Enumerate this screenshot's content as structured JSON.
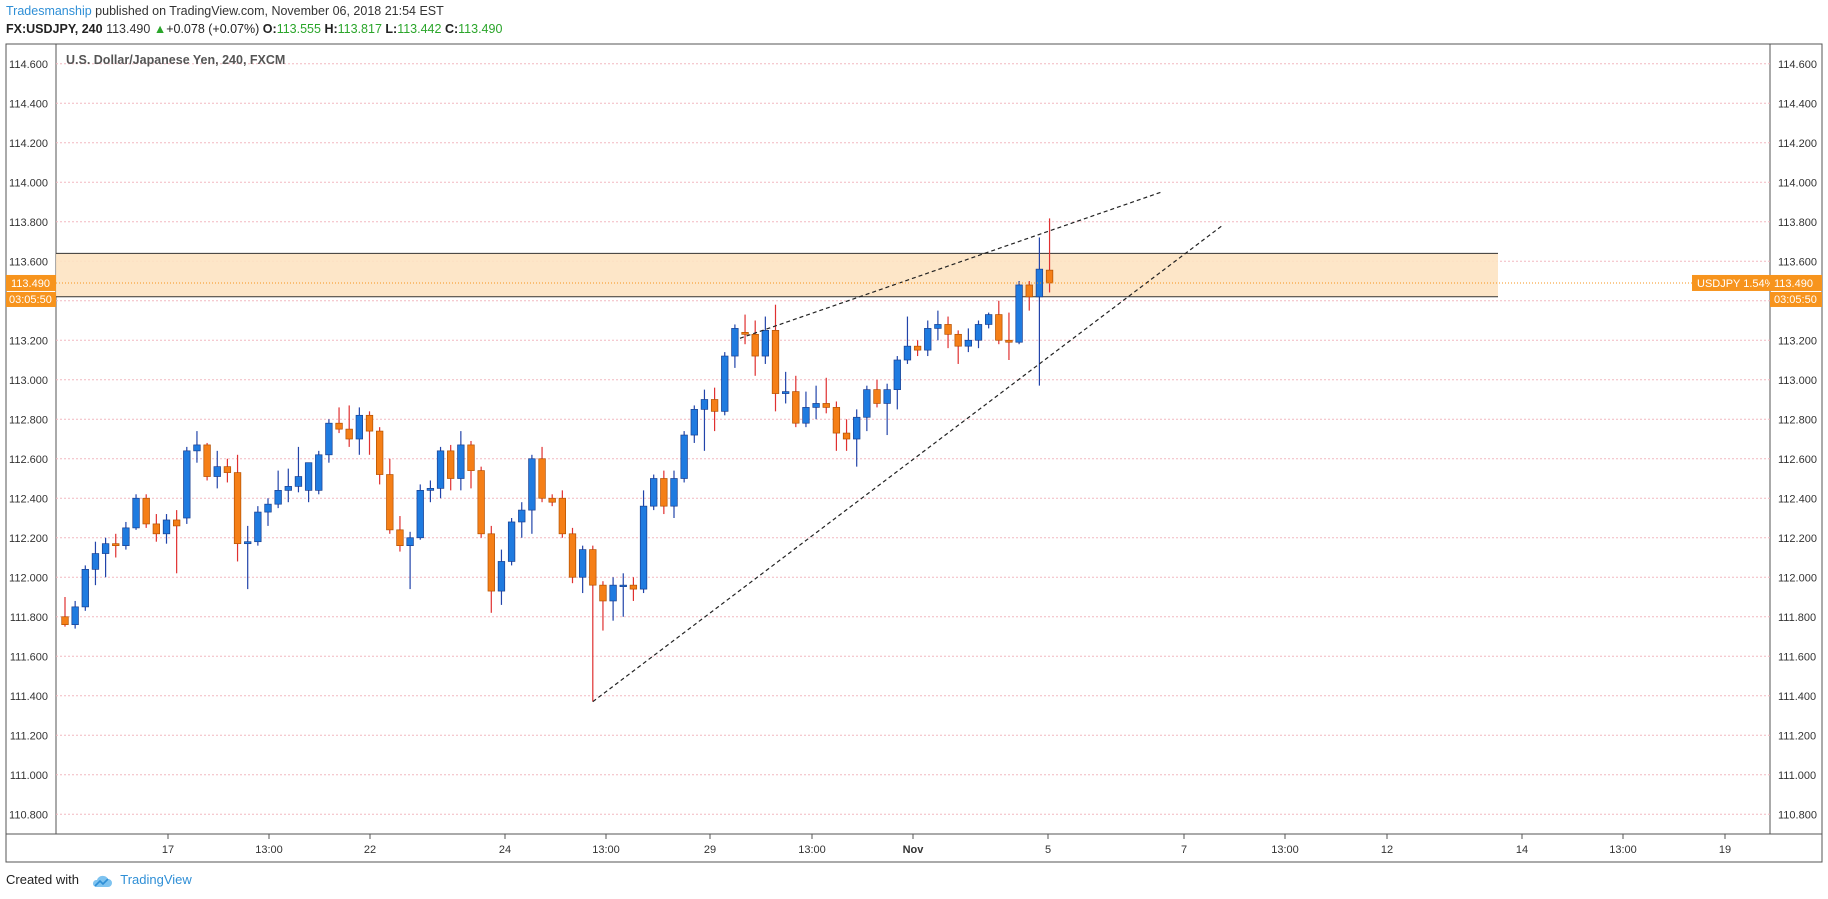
{
  "header": {
    "author": "Tradesmanship",
    "published_text": "published on TradingView.com, November 06, 2018 21:54 EST",
    "symbol": "FX:USDJPY, 240",
    "last_price": "113.490",
    "change": "+0.078 (+0.07%)",
    "open_label": "O:",
    "open": "113.555",
    "high_label": "H:",
    "high": "113.817",
    "low_label": "L:",
    "low": "113.442",
    "close_label": "C:",
    "close": "113.490"
  },
  "footer": {
    "created_with": "Created with",
    "brand": "TradingView"
  },
  "colors": {
    "up": "#1f7be0",
    "down": "#f57f17",
    "gridline": "#f2b8c0",
    "zone_fill": "#fde3c2",
    "price_tag": "#f7941d"
  },
  "chart_data": {
    "type": "candlestick",
    "title": "U.S. Dollar/Japanese Yen, 240, FXCM",
    "ylim": [
      110.7,
      114.7
    ],
    "y_ticks": [
      "114.600",
      "114.400",
      "114.200",
      "114.000",
      "113.800",
      "113.600",
      "113.400",
      "113.200",
      "113.000",
      "112.800",
      "112.600",
      "112.400",
      "112.200",
      "112.000",
      "111.800",
      "111.600",
      "111.400",
      "111.200",
      "111.000",
      "110.800"
    ],
    "x_ticks": [
      "17",
      "13:00",
      "22",
      "24",
      "13:00",
      "29",
      "13:00",
      "Nov",
      "5",
      "7",
      "13:00",
      "12",
      "14",
      "13:00",
      "19"
    ],
    "price_label_left": "113.490",
    "countdown": "03:05:50",
    "price_label_right": "113.490",
    "symbol_badge": "USDJPY 1.54%",
    "resistance_zone": {
      "top": 113.64,
      "bottom": 113.42
    },
    "candles": [
      {
        "o": 111.8,
        "h": 111.9,
        "l": 111.75,
        "c": 111.76
      },
      {
        "o": 111.76,
        "h": 111.88,
        "l": 111.74,
        "c": 111.85
      },
      {
        "o": 111.85,
        "h": 112.06,
        "l": 111.83,
        "c": 112.04
      },
      {
        "o": 112.04,
        "h": 112.18,
        "l": 111.96,
        "c": 112.12
      },
      {
        "o": 112.12,
        "h": 112.2,
        "l": 112.0,
        "c": 112.17
      },
      {
        "o": 112.17,
        "h": 112.22,
        "l": 112.1,
        "c": 112.16
      },
      {
        "o": 112.16,
        "h": 112.28,
        "l": 112.14,
        "c": 112.25
      },
      {
        "o": 112.25,
        "h": 112.42,
        "l": 112.24,
        "c": 112.4
      },
      {
        "o": 112.4,
        "h": 112.42,
        "l": 112.25,
        "c": 112.27
      },
      {
        "o": 112.27,
        "h": 112.32,
        "l": 112.18,
        "c": 112.22
      },
      {
        "o": 112.22,
        "h": 112.32,
        "l": 112.17,
        "c": 112.29
      },
      {
        "o": 112.29,
        "h": 112.34,
        "l": 112.02,
        "c": 112.26
      },
      {
        "o": 112.3,
        "h": 112.66,
        "l": 112.27,
        "c": 112.64
      },
      {
        "o": 112.64,
        "h": 112.74,
        "l": 112.58,
        "c": 112.67
      },
      {
        "o": 112.67,
        "h": 112.68,
        "l": 112.49,
        "c": 112.51
      },
      {
        "o": 112.51,
        "h": 112.64,
        "l": 112.45,
        "c": 112.56
      },
      {
        "o": 112.56,
        "h": 112.6,
        "l": 112.48,
        "c": 112.53
      },
      {
        "o": 112.53,
        "h": 112.62,
        "l": 112.08,
        "c": 112.17
      },
      {
        "o": 112.17,
        "h": 112.26,
        "l": 111.94,
        "c": 112.18
      },
      {
        "o": 112.18,
        "h": 112.36,
        "l": 112.16,
        "c": 112.33
      },
      {
        "o": 112.33,
        "h": 112.4,
        "l": 112.26,
        "c": 112.37
      },
      {
        "o": 112.37,
        "h": 112.54,
        "l": 112.35,
        "c": 112.44
      },
      {
        "o": 112.44,
        "h": 112.55,
        "l": 112.38,
        "c": 112.46
      },
      {
        "o": 112.46,
        "h": 112.66,
        "l": 112.43,
        "c": 112.51
      },
      {
        "o": 112.44,
        "h": 112.58,
        "l": 112.38,
        "c": 112.58
      },
      {
        "o": 112.44,
        "h": 112.64,
        "l": 112.42,
        "c": 112.62
      },
      {
        "o": 112.62,
        "h": 112.8,
        "l": 112.58,
        "c": 112.78
      },
      {
        "o": 112.78,
        "h": 112.86,
        "l": 112.73,
        "c": 112.75
      },
      {
        "o": 112.75,
        "h": 112.87,
        "l": 112.66,
        "c": 112.7
      },
      {
        "o": 112.7,
        "h": 112.86,
        "l": 112.62,
        "c": 112.82
      },
      {
        "o": 112.82,
        "h": 112.84,
        "l": 112.62,
        "c": 112.74
      },
      {
        "o": 112.74,
        "h": 112.76,
        "l": 112.47,
        "c": 112.52
      },
      {
        "o": 112.52,
        "h": 112.6,
        "l": 112.22,
        "c": 112.24
      },
      {
        "o": 112.24,
        "h": 112.31,
        "l": 112.13,
        "c": 112.16
      },
      {
        "o": 112.16,
        "h": 112.23,
        "l": 111.94,
        "c": 112.2
      },
      {
        "o": 112.2,
        "h": 112.47,
        "l": 112.19,
        "c": 112.44
      },
      {
        "o": 112.44,
        "h": 112.49,
        "l": 112.38,
        "c": 112.45
      },
      {
        "o": 112.45,
        "h": 112.66,
        "l": 112.4,
        "c": 112.64
      },
      {
        "o": 112.64,
        "h": 112.67,
        "l": 112.44,
        "c": 112.5
      },
      {
        "o": 112.5,
        "h": 112.74,
        "l": 112.44,
        "c": 112.67
      },
      {
        "o": 112.67,
        "h": 112.69,
        "l": 112.45,
        "c": 112.54
      },
      {
        "o": 112.54,
        "h": 112.56,
        "l": 112.2,
        "c": 112.22
      },
      {
        "o": 112.22,
        "h": 112.26,
        "l": 111.82,
        "c": 111.93
      },
      {
        "o": 111.93,
        "h": 112.14,
        "l": 111.86,
        "c": 112.08
      },
      {
        "o": 112.08,
        "h": 112.3,
        "l": 112.06,
        "c": 112.28
      },
      {
        "o": 112.28,
        "h": 112.38,
        "l": 112.2,
        "c": 112.34
      },
      {
        "o": 112.34,
        "h": 112.62,
        "l": 112.22,
        "c": 112.6
      },
      {
        "o": 112.6,
        "h": 112.66,
        "l": 112.38,
        "c": 112.4
      },
      {
        "o": 112.4,
        "h": 112.42,
        "l": 112.36,
        "c": 112.38
      },
      {
        "o": 112.4,
        "h": 112.44,
        "l": 112.2,
        "c": 112.22
      },
      {
        "o": 112.22,
        "h": 112.25,
        "l": 111.97,
        "c": 112.0
      },
      {
        "o": 112.0,
        "h": 112.16,
        "l": 111.92,
        "c": 112.14
      },
      {
        "o": 112.14,
        "h": 112.16,
        "l": 111.37,
        "c": 111.96
      },
      {
        "o": 111.96,
        "h": 111.98,
        "l": 111.73,
        "c": 111.88
      },
      {
        "o": 111.88,
        "h": 112.0,
        "l": 111.78,
        "c": 111.96
      },
      {
        "o": 111.96,
        "h": 112.02,
        "l": 111.8,
        "c": 111.96
      },
      {
        "o": 111.96,
        "h": 112.0,
        "l": 111.88,
        "c": 111.94
      },
      {
        "o": 111.94,
        "h": 112.44,
        "l": 111.92,
        "c": 112.36
      },
      {
        "o": 112.36,
        "h": 112.52,
        "l": 112.34,
        "c": 112.5
      },
      {
        "o": 112.5,
        "h": 112.54,
        "l": 112.32,
        "c": 112.36
      },
      {
        "o": 112.36,
        "h": 112.54,
        "l": 112.3,
        "c": 112.5
      },
      {
        "o": 112.5,
        "h": 112.74,
        "l": 112.48,
        "c": 112.72
      },
      {
        "o": 112.72,
        "h": 112.87,
        "l": 112.68,
        "c": 112.85
      },
      {
        "o": 112.85,
        "h": 112.95,
        "l": 112.64,
        "c": 112.9
      },
      {
        "o": 112.9,
        "h": 112.96,
        "l": 112.74,
        "c": 112.84
      },
      {
        "o": 112.84,
        "h": 113.14,
        "l": 112.82,
        "c": 113.12
      },
      {
        "o": 113.12,
        "h": 113.28,
        "l": 113.06,
        "c": 113.26
      },
      {
        "o": 113.24,
        "h": 113.33,
        "l": 113.18,
        "c": 113.23
      },
      {
        "o": 113.23,
        "h": 113.3,
        "l": 113.02,
        "c": 113.12
      },
      {
        "o": 113.12,
        "h": 113.32,
        "l": 113.08,
        "c": 113.25
      },
      {
        "o": 113.25,
        "h": 113.38,
        "l": 112.84,
        "c": 112.93
      },
      {
        "o": 112.93,
        "h": 113.04,
        "l": 112.88,
        "c": 112.94
      },
      {
        "o": 112.94,
        "h": 113.02,
        "l": 112.76,
        "c": 112.78
      },
      {
        "o": 112.78,
        "h": 112.94,
        "l": 112.76,
        "c": 112.86
      },
      {
        "o": 112.86,
        "h": 112.97,
        "l": 112.8,
        "c": 112.88
      },
      {
        "o": 112.88,
        "h": 113.01,
        "l": 112.83,
        "c": 112.86
      },
      {
        "o": 112.86,
        "h": 112.89,
        "l": 112.64,
        "c": 112.73
      },
      {
        "o": 112.73,
        "h": 112.8,
        "l": 112.64,
        "c": 112.7
      },
      {
        "o": 112.7,
        "h": 112.85,
        "l": 112.56,
        "c": 112.81
      },
      {
        "o": 112.81,
        "h": 112.97,
        "l": 112.74,
        "c": 112.95
      },
      {
        "o": 112.95,
        "h": 113.0,
        "l": 112.86,
        "c": 112.88
      },
      {
        "o": 112.88,
        "h": 112.98,
        "l": 112.72,
        "c": 112.95
      },
      {
        "o": 112.95,
        "h": 113.12,
        "l": 112.85,
        "c": 113.1
      },
      {
        "o": 113.1,
        "h": 113.32,
        "l": 113.08,
        "c": 113.17
      },
      {
        "o": 113.17,
        "h": 113.2,
        "l": 113.12,
        "c": 113.15
      },
      {
        "o": 113.15,
        "h": 113.3,
        "l": 113.12,
        "c": 113.26
      },
      {
        "o": 113.26,
        "h": 113.35,
        "l": 113.2,
        "c": 113.28
      },
      {
        "o": 113.28,
        "h": 113.32,
        "l": 113.16,
        "c": 113.23
      },
      {
        "o": 113.23,
        "h": 113.25,
        "l": 113.08,
        "c": 113.17
      },
      {
        "o": 113.17,
        "h": 113.26,
        "l": 113.14,
        "c": 113.2
      },
      {
        "o": 113.2,
        "h": 113.3,
        "l": 113.16,
        "c": 113.28
      },
      {
        "o": 113.28,
        "h": 113.34,
        "l": 113.26,
        "c": 113.33
      },
      {
        "o": 113.33,
        "h": 113.4,
        "l": 113.18,
        "c": 113.2
      },
      {
        "o": 113.2,
        "h": 113.34,
        "l": 113.1,
        "c": 113.19
      },
      {
        "o": 113.19,
        "h": 113.5,
        "l": 113.18,
        "c": 113.48
      },
      {
        "o": 113.48,
        "h": 113.5,
        "l": 113.35,
        "c": 113.42
      },
      {
        "o": 113.42,
        "h": 113.72,
        "l": 112.97,
        "c": 113.56
      },
      {
        "o": 113.555,
        "h": 113.817,
        "l": 113.442,
        "c": 113.49
      }
    ],
    "trendlines": [
      {
        "name": "upper channel line",
        "points": [
          {
            "bar": 66.5,
            "price": 113.21
          },
          {
            "bar": 108,
            "price": 113.95
          }
        ]
      },
      {
        "name": "lower channel line",
        "points": [
          {
            "bar": 52,
            "price": 111.37
          },
          {
            "bar": 114,
            "price": 113.78
          }
        ]
      }
    ]
  }
}
